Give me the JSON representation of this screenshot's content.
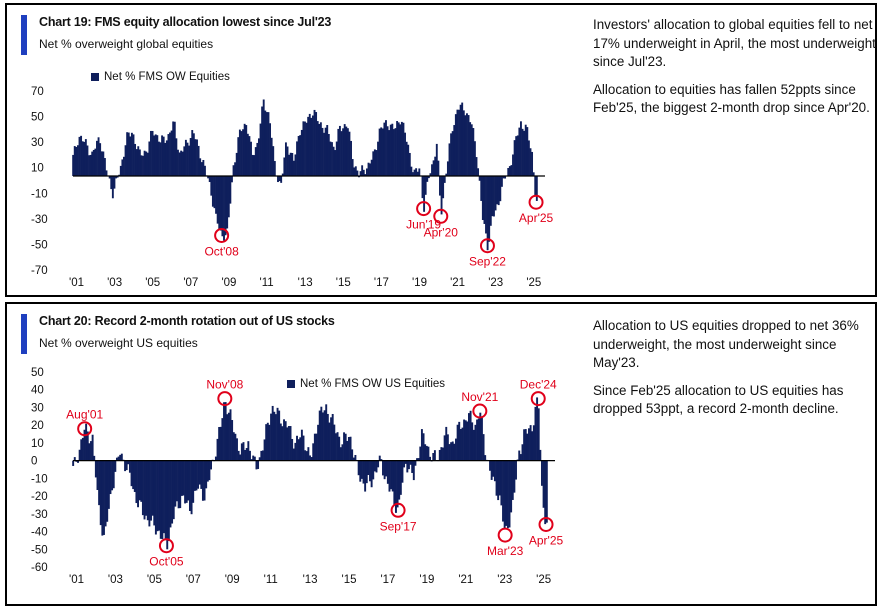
{
  "colors": {
    "bar": "#0f1f5c",
    "accent": "#1f3fbf",
    "highlight": "#e0001a"
  },
  "chart_data": [
    {
      "type": "bar",
      "title": "Chart 19: FMS equity allocation lowest since Jul'23",
      "subtitle": "Net % overweight global equities",
      "legend": "Net % FMS OW Equities",
      "ylim": [
        -70,
        70
      ],
      "yticks": [
        70,
        50,
        30,
        10,
        -10,
        -30,
        -50,
        -70
      ],
      "xticks": [
        "'01",
        "'03",
        "'05",
        "'07",
        "'09",
        "'11",
        "'13",
        "'15",
        "'17",
        "'19",
        "'21",
        "'23",
        "'25"
      ],
      "xrange": [
        2001.0,
        2025.35
      ],
      "series": [
        {
          "points": [
            [
              2001.0,
              18
            ],
            [
              2001.3,
              35
            ],
            [
              2001.7,
              28
            ],
            [
              2002.0,
              20
            ],
            [
              2002.4,
              34
            ],
            [
              2002.8,
              5
            ],
            [
              2003.1,
              -10
            ],
            [
              2003.5,
              10
            ],
            [
              2003.8,
              33
            ],
            [
              2004.1,
              38
            ],
            [
              2004.5,
              20
            ],
            [
              2004.9,
              24
            ],
            [
              2005.2,
              40
            ],
            [
              2005.6,
              30
            ],
            [
              2006.0,
              35
            ],
            [
              2006.3,
              45
            ],
            [
              2006.6,
              20
            ],
            [
              2007.0,
              30
            ],
            [
              2007.3,
              38
            ],
            [
              2007.6,
              25
            ],
            [
              2007.9,
              10
            ],
            [
              2008.2,
              -5
            ],
            [
              2008.5,
              -30
            ],
            [
              2008.8,
              -43
            ],
            [
              2009.1,
              -42
            ],
            [
              2009.4,
              10
            ],
            [
              2009.8,
              40
            ],
            [
              2010.1,
              45
            ],
            [
              2010.4,
              20
            ],
            [
              2010.7,
              30
            ],
            [
              2011.0,
              62
            ],
            [
              2011.3,
              50
            ],
            [
              2011.6,
              10
            ],
            [
              2011.9,
              -5
            ],
            [
              2012.2,
              30
            ],
            [
              2012.6,
              15
            ],
            [
              2012.9,
              40
            ],
            [
              2013.2,
              45
            ],
            [
              2013.6,
              55
            ],
            [
              2013.9,
              45
            ],
            [
              2014.3,
              40
            ],
            [
              2014.7,
              25
            ],
            [
              2015.0,
              40
            ],
            [
              2015.4,
              45
            ],
            [
              2015.7,
              15
            ],
            [
              2016.0,
              5
            ],
            [
              2016.4,
              10
            ],
            [
              2016.8,
              20
            ],
            [
              2017.1,
              40
            ],
            [
              2017.5,
              45
            ],
            [
              2017.9,
              40
            ],
            [
              2018.2,
              50
            ],
            [
              2018.6,
              25
            ],
            [
              2018.9,
              5
            ],
            [
              2019.2,
              10
            ],
            [
              2019.4,
              -22
            ],
            [
              2019.7,
              5
            ],
            [
              2019.9,
              15
            ],
            [
              2020.1,
              30
            ],
            [
              2020.3,
              -28
            ],
            [
              2020.6,
              10
            ],
            [
              2020.9,
              40
            ],
            [
              2021.2,
              58
            ],
            [
              2021.6,
              55
            ],
            [
              2021.9,
              45
            ],
            [
              2022.2,
              20
            ],
            [
              2022.5,
              -30
            ],
            [
              2022.75,
              -51
            ],
            [
              2023.0,
              -30
            ],
            [
              2023.3,
              -20
            ],
            [
              2023.5,
              -5
            ],
            [
              2023.9,
              10
            ],
            [
              2024.2,
              30
            ],
            [
              2024.5,
              45
            ],
            [
              2024.8,
              40
            ],
            [
              2025.1,
              20
            ],
            [
              2025.3,
              -17
            ]
          ]
        }
      ],
      "annotations": [
        {
          "label": "Oct'08",
          "x": 2008.8,
          "y": -43
        },
        {
          "label": "Jun'19",
          "x": 2019.4,
          "y": -22
        },
        {
          "label": "Apr'20",
          "x": 2020.3,
          "y": -28
        },
        {
          "label": "Sep'22",
          "x": 2022.75,
          "y": -51
        },
        {
          "label": "Apr'25",
          "x": 2025.3,
          "y": -17
        }
      ]
    },
    {
      "type": "bar",
      "title": "Chart 20: Record 2-month rotation out of US stocks",
      "subtitle": "Net % overweight US equities",
      "legend": "Net % FMS OW US Equities",
      "ylim": [
        -60,
        50
      ],
      "yticks": [
        50,
        40,
        30,
        20,
        10,
        0,
        -10,
        -20,
        -30,
        -40,
        -50,
        -60
      ],
      "xticks": [
        "'01",
        "'03",
        "'05",
        "'07",
        "'09",
        "'11",
        "'13",
        "'15",
        "'17",
        "'19",
        "'21",
        "'23",
        "'25"
      ],
      "xrange": [
        2001.0,
        2025.35
      ],
      "series": [
        {
          "points": [
            [
              2001.0,
              -5
            ],
            [
              2001.3,
              5
            ],
            [
              2001.6,
              18
            ],
            [
              2002.0,
              12
            ],
            [
              2002.3,
              -25
            ],
            [
              2002.6,
              -45
            ],
            [
              2003.0,
              -15
            ],
            [
              2003.4,
              5
            ],
            [
              2003.8,
              -5
            ],
            [
              2004.2,
              -20
            ],
            [
              2004.6,
              -30
            ],
            [
              2005.0,
              -35
            ],
            [
              2005.4,
              -40
            ],
            [
              2005.8,
              -48
            ],
            [
              2006.2,
              -30
            ],
            [
              2006.6,
              -20
            ],
            [
              2007.0,
              -28
            ],
            [
              2007.4,
              -15
            ],
            [
              2007.8,
              -20
            ],
            [
              2008.2,
              0
            ],
            [
              2008.6,
              20
            ],
            [
              2008.8,
              35
            ],
            [
              2009.2,
              20
            ],
            [
              2009.6,
              5
            ],
            [
              2010.0,
              10
            ],
            [
              2010.4,
              -5
            ],
            [
              2010.8,
              10
            ],
            [
              2011.2,
              30
            ],
            [
              2011.6,
              25
            ],
            [
              2012.0,
              20
            ],
            [
              2012.4,
              10
            ],
            [
              2012.8,
              15
            ],
            [
              2013.2,
              0
            ],
            [
              2013.6,
              25
            ],
            [
              2014.0,
              30
            ],
            [
              2014.4,
              20
            ],
            [
              2014.8,
              10
            ],
            [
              2015.2,
              15
            ],
            [
              2015.6,
              -5
            ],
            [
              2016.0,
              -15
            ],
            [
              2016.4,
              -10
            ],
            [
              2016.8,
              0
            ],
            [
              2017.2,
              -15
            ],
            [
              2017.7,
              -28
            ],
            [
              2018.1,
              0
            ],
            [
              2018.5,
              -10
            ],
            [
              2018.9,
              15
            ],
            [
              2019.3,
              5
            ],
            [
              2019.7,
              0
            ],
            [
              2020.1,
              15
            ],
            [
              2020.5,
              10
            ],
            [
              2020.9,
              20
            ],
            [
              2021.3,
              25
            ],
            [
              2021.7,
              20
            ],
            [
              2021.9,
              28
            ],
            [
              2022.2,
              5
            ],
            [
              2022.5,
              -10
            ],
            [
              2022.9,
              -20
            ],
            [
              2023.2,
              -42
            ],
            [
              2023.6,
              -25
            ],
            [
              2023.9,
              5
            ],
            [
              2024.2,
              15
            ],
            [
              2024.6,
              20
            ],
            [
              2024.9,
              35
            ],
            [
              2025.1,
              -20
            ],
            [
              2025.3,
              -36
            ]
          ]
        }
      ],
      "annotations": [
        {
          "label": "Aug'01",
          "x": 2001.6,
          "y": 18
        },
        {
          "label": "Oct'05",
          "x": 2005.8,
          "y": -48
        },
        {
          "label": "Nov'08",
          "x": 2008.8,
          "y": 35
        },
        {
          "label": "Sep'17",
          "x": 2017.7,
          "y": -28
        },
        {
          "label": "Nov'21",
          "x": 2021.9,
          "y": 28
        },
        {
          "label": "Mar'23",
          "x": 2023.2,
          "y": -42
        },
        {
          "label": "Dec'24",
          "x": 2024.9,
          "y": 35
        },
        {
          "label": "Apr'25",
          "x": 2025.3,
          "y": -36
        }
      ]
    }
  ],
  "panel1": {
    "title": "Chart 19: FMS equity allocation lowest since Jul'23",
    "subtitle": "Net % overweight global equities",
    "legend": "Net % FMS OW Equities",
    "text": [
      "Investors' allocation to global equities fell to net 17% underweight in April, the most underweight since Jul'23.",
      "Allocation to equities has fallen 52ppts since Feb'25, the biggest 2-month drop since Apr'20."
    ]
  },
  "panel2": {
    "title": "Chart 20: Record 2-month rotation out of US stocks",
    "subtitle": "Net % overweight US equities",
    "legend": "Net % FMS OW US Equities",
    "text": [
      "Allocation to US equities dropped to net 36% underweight, the most underweight since May'23.",
      "Since Feb'25 allocation to US equities has dropped 53ppt, a record 2-month decline."
    ]
  }
}
